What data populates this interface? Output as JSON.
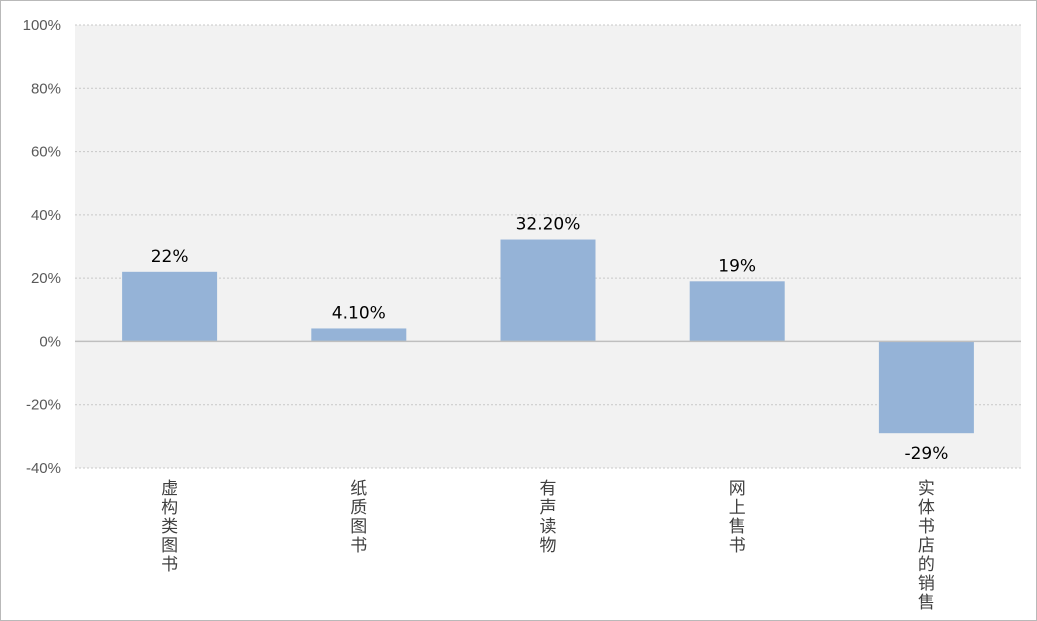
{
  "chart_data": {
    "type": "bar",
    "title": "",
    "xlabel": "",
    "ylabel": "",
    "categories": [
      "虚构类图书",
      "纸质图书",
      "有声读物",
      "网上售书",
      "实体书店的销售"
    ],
    "values": [
      22,
      4.1,
      32.2,
      19,
      -29
    ],
    "data_labels": [
      "22%",
      "4.10%",
      "32.20%",
      "19%",
      "-29%"
    ],
    "ylim": [
      -40,
      100
    ],
    "y_ticks": [
      100,
      80,
      60,
      40,
      20,
      0,
      -20,
      -40
    ],
    "y_tick_labels": [
      "100%",
      "80%",
      "60%",
      "40%",
      "20%",
      "0%",
      "-20%",
      "-40%"
    ],
    "grid": true,
    "legend": "none",
    "colors": {
      "bar": "#95b3d7",
      "plot_background": "#f2f2f2",
      "gridline": "#c8c8c8",
      "zero_line": "#bfbfbf"
    }
  }
}
